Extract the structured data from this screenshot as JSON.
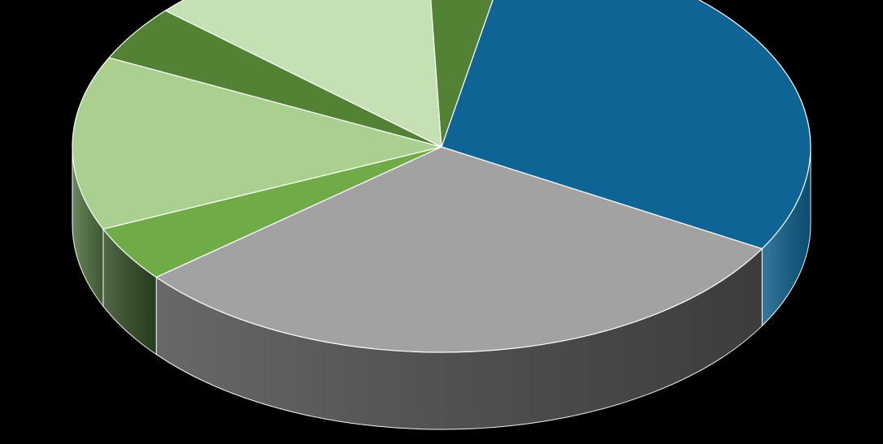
{
  "chart_data": {
    "type": "pie",
    "style": "3d",
    "background": "#000000",
    "series": [
      {
        "name": "",
        "slices": [
          {
            "value": 30.2,
            "color": "#0e6595",
            "side_color": "#0b5a85"
          },
          {
            "value": 30.8,
            "color": "#a2a2a2",
            "side_color": "#474747"
          },
          {
            "value": 4.4,
            "color": "#6fac47",
            "side_color": "#2c4720"
          },
          {
            "value": 13.7,
            "color": "#a9d08e",
            "side_color": "#4a6a3c"
          },
          {
            "value": 4.4,
            "color": "#548235",
            "side_color": "#375623"
          },
          {
            "value": 12.8,
            "color": "#c5e0b3",
            "side_color": "#8aa57a"
          },
          {
            "value": 3.7,
            "color": "#548235",
            "side_color": "#43682c"
          }
        ]
      }
    ]
  }
}
